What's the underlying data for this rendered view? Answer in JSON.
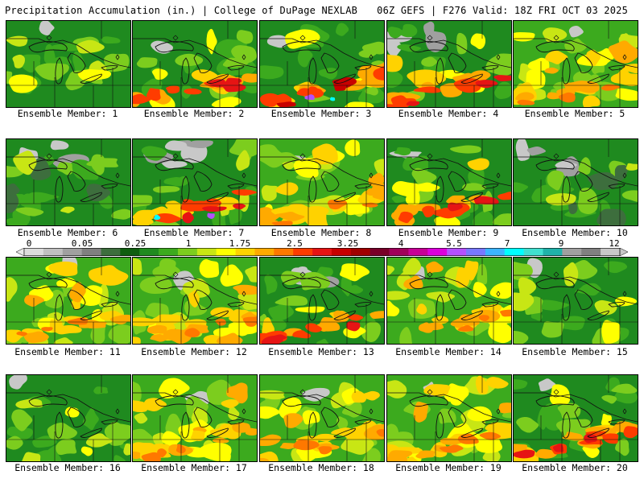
{
  "header": {
    "left_title": "Precipitation Accumulation (in.) | College of DuPage NEXLAB",
    "right_title": "06Z GEFS | F276 Valid: 18Z FRI OCT 03 2025"
  },
  "colorbar": {
    "tick_labels": [
      "0",
      "0.05",
      "0.25",
      "1",
      "1.75",
      "2.5",
      "3.25",
      "4",
      "5.5",
      "7",
      "9",
      "12"
    ],
    "colors": [
      "#dcdcdc",
      "#c0c0c0",
      "#a0a0a0",
      "#808080",
      "#3d6e3d",
      "#0f5e0f",
      "#1f8a1f",
      "#3caa1e",
      "#7ccd1e",
      "#c8e614",
      "#ffff00",
      "#ffd200",
      "#ffaa00",
      "#ff7800",
      "#ff3c00",
      "#e61414",
      "#c80000",
      "#a00000",
      "#780028",
      "#a0005a",
      "#c80096",
      "#dc00dc",
      "#b450ff",
      "#7878ff",
      "#3cb4ff",
      "#00ffff",
      "#40e0d0",
      "#20b2aa",
      "#a0a0a0",
      "#808080",
      "#c8c8c8"
    ]
  },
  "members": [
    {
      "label": "Ensemble Member: 1",
      "theme": "green-mild"
    },
    {
      "label": "Ensemble Member: 2",
      "theme": "red-south"
    },
    {
      "label": "Ensemble Member: 3",
      "theme": "red-south-cyan"
    },
    {
      "label": "Ensemble Member: 4",
      "theme": "red-south-gray"
    },
    {
      "label": "Ensemble Member: 5",
      "theme": "yellow-wide"
    },
    {
      "label": "Ensemble Member: 6",
      "theme": "green-gray"
    },
    {
      "label": "Ensemble Member: 7",
      "theme": "gray-north-red"
    },
    {
      "label": "Ensemble Member: 8",
      "theme": "yellow-wide"
    },
    {
      "label": "Ensemble Member: 9",
      "theme": "red-south"
    },
    {
      "label": "Ensemble Member: 10",
      "theme": "green-gray"
    },
    {
      "label": "Ensemble Member: 11",
      "theme": "yellow-wide"
    },
    {
      "label": "Ensemble Member: 12",
      "theme": "yellow-wide"
    },
    {
      "label": "Ensemble Member: 13",
      "theme": "red-south-gray"
    },
    {
      "label": "Ensemble Member: 14",
      "theme": "yellow-wide"
    },
    {
      "label": "Ensemble Member: 15",
      "theme": "green-mild"
    },
    {
      "label": "Ensemble Member: 16",
      "theme": "green-mild"
    },
    {
      "label": "Ensemble Member: 17",
      "theme": "yellow-wide"
    },
    {
      "label": "Ensemble Member: 18",
      "theme": "yellow-wide"
    },
    {
      "label": "Ensemble Member: 19",
      "theme": "yellow-wide"
    },
    {
      "label": "Ensemble Member: 20",
      "theme": "red-south"
    }
  ]
}
